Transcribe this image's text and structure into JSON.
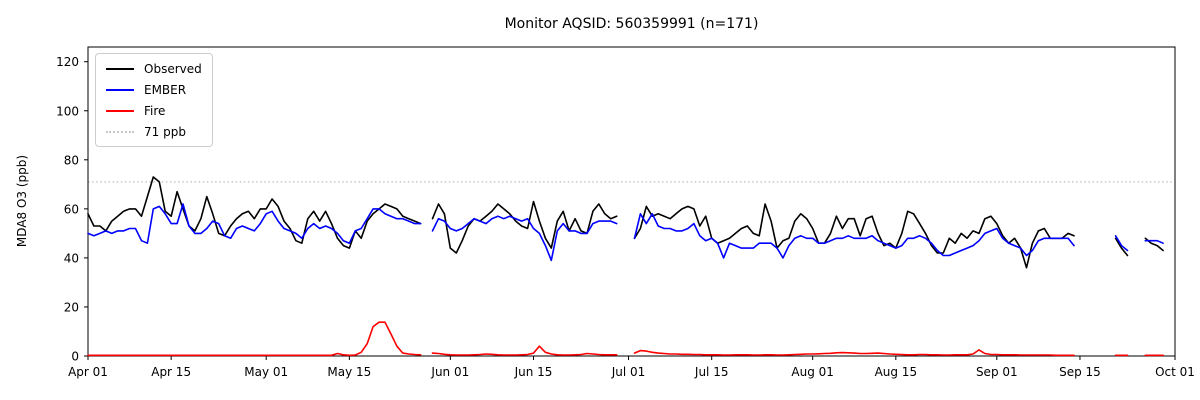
{
  "chart_data": {
    "type": "line",
    "title": "Monitor AQSID: 560359991 (n=171)",
    "xlabel": "",
    "ylabel": "MDA8 O3 (ppb)",
    "ylim": [
      0,
      126
    ],
    "yticks": [
      0,
      20,
      40,
      60,
      80,
      100,
      120
    ],
    "x_range_days": [
      0,
      183
    ],
    "x_tick_days": [
      0,
      14,
      30,
      44,
      61,
      75,
      91,
      105,
      122,
      136,
      153,
      167,
      183
    ],
    "x_tick_labels": [
      "Apr 01",
      "Apr 15",
      "May 01",
      "May 15",
      "Jun 01",
      "Jun 15",
      "Jul 01",
      "Jul 15",
      "Aug 01",
      "Aug 15",
      "Sep 01",
      "Sep 15",
      "Oct 01"
    ],
    "grid": false,
    "legend_position": "upper-left",
    "threshold": {
      "label": "71 ppb",
      "value": 71,
      "color": "#c8c8c8",
      "style": "dotted"
    },
    "axis_color": "#000000",
    "background_color": "#ffffff",
    "series": [
      {
        "name": "Observed",
        "color": "#000000",
        "values": [
          58,
          53,
          53,
          51,
          55,
          57,
          59,
          60,
          60,
          57,
          65,
          73,
          71,
          59,
          57,
          67,
          60,
          53,
          51,
          56,
          65,
          58,
          50,
          49,
          53,
          56,
          58,
          59,
          56,
          60,
          60,
          64,
          61,
          55,
          52,
          47,
          46,
          56,
          59,
          55,
          59,
          54,
          48,
          45,
          44,
          51,
          48,
          55,
          58,
          60,
          62,
          61,
          60,
          57,
          56,
          55,
          54,
          null,
          56,
          62,
          58,
          44,
          42,
          47,
          53,
          56,
          55,
          57,
          59,
          62,
          60,
          58,
          55,
          53,
          52,
          63,
          55,
          48,
          44,
          55,
          59,
          51,
          56,
          51,
          50,
          59,
          62,
          58,
          56,
          57,
          null,
          null,
          48,
          52,
          61,
          57,
          58,
          57,
          56,
          58,
          60,
          61,
          60,
          53,
          57,
          48,
          46,
          47,
          48,
          50,
          52,
          53,
          50,
          49,
          62,
          55,
          44,
          47,
          48,
          55,
          58,
          56,
          52,
          46,
          46,
          50,
          57,
          52,
          56,
          56,
          49,
          56,
          57,
          50,
          45,
          46,
          44,
          50,
          59,
          58,
          54,
          50,
          45,
          42,
          42,
          48,
          46,
          50,
          48,
          51,
          50,
          56,
          57,
          54,
          49,
          46,
          48,
          44,
          36,
          46,
          51,
          52,
          48,
          48,
          48,
          50,
          49,
          null,
          null,
          null,
          null,
          null,
          null,
          48,
          44,
          41,
          null,
          null,
          48,
          46,
          45,
          43,
          null
        ]
      },
      {
        "name": "EMBER",
        "color": "#0000ff",
        "values": [
          50,
          49,
          50,
          51,
          50,
          51,
          51,
          52,
          52,
          47,
          46,
          60,
          61,
          58,
          54,
          54,
          62,
          53,
          50,
          50,
          52,
          55,
          54,
          49,
          48,
          52,
          53,
          52,
          51,
          54,
          58,
          59,
          55,
          52,
          51,
          50,
          48,
          52,
          54,
          52,
          53,
          52,
          50,
          47,
          46,
          51,
          52,
          56,
          60,
          60,
          58,
          57,
          56,
          56,
          55,
          54,
          54,
          null,
          51,
          56,
          55,
          52,
          51,
          52,
          54,
          56,
          55,
          54,
          56,
          57,
          56,
          57,
          56,
          55,
          56,
          52,
          50,
          45,
          39,
          51,
          54,
          51,
          51,
          50,
          50,
          54,
          55,
          55,
          55,
          54,
          null,
          null,
          48,
          58,
          54,
          58,
          53,
          52,
          52,
          51,
          51,
          52,
          54,
          49,
          47,
          48,
          46,
          40,
          46,
          45,
          44,
          44,
          44,
          46,
          46,
          46,
          44,
          40,
          45,
          48,
          49,
          48,
          48,
          46,
          46,
          47,
          48,
          48,
          49,
          48,
          48,
          48,
          49,
          47,
          46,
          45,
          44,
          45,
          48,
          48,
          49,
          48,
          46,
          43,
          41,
          41,
          42,
          43,
          44,
          45,
          47,
          50,
          51,
          52,
          48,
          46,
          45,
          44,
          41,
          43,
          47,
          48,
          48,
          48,
          48,
          48,
          45,
          null,
          null,
          null,
          null,
          null,
          null,
          49,
          45,
          43,
          null,
          null,
          47,
          47,
          47,
          46,
          null
        ]
      },
      {
        "name": "Fire",
        "color": "#ff0000",
        "values": [
          0.3,
          0.3,
          0.3,
          0.3,
          0.3,
          0.3,
          0.3,
          0.3,
          0.3,
          0.3,
          0.3,
          0.3,
          0.3,
          0.3,
          0.3,
          0.3,
          0.3,
          0.3,
          0.3,
          0.3,
          0.3,
          0.3,
          0.3,
          0.3,
          0.3,
          0.3,
          0.3,
          0.3,
          0.3,
          0.3,
          0.3,
          0.3,
          0.3,
          0.3,
          0.3,
          0.3,
          0.3,
          0.3,
          0.3,
          0.3,
          0.3,
          0.3,
          1,
          0.5,
          0.3,
          0.4,
          1.5,
          5,
          12,
          13.8,
          13.8,
          9,
          4,
          1.2,
          0.8,
          0.6,
          0.5,
          null,
          1.2,
          1,
          0.7,
          0.5,
          0.4,
          0.4,
          0.4,
          0.5,
          0.6,
          0.8,
          0.7,
          0.5,
          0.4,
          0.4,
          0.4,
          0.5,
          0.6,
          1.2,
          4,
          1.5,
          0.8,
          0.5,
          0.4,
          0.4,
          0.5,
          0.6,
          1,
          0.8,
          0.6,
          0.5,
          0.5,
          0.5,
          null,
          null,
          1.2,
          2.2,
          2,
          1.5,
          1.2,
          1,
          0.8,
          0.8,
          0.7,
          0.7,
          0.6,
          0.6,
          0.5,
          0.5,
          0.5,
          0.4,
          0.4,
          0.5,
          0.5,
          0.5,
          0.4,
          0.4,
          0.5,
          0.5,
          0.4,
          0.4,
          0.5,
          0.6,
          0.7,
          0.8,
          0.8,
          0.9,
          1,
          1.1,
          1.3,
          1.4,
          1.3,
          1.2,
          1,
          1,
          1.1,
          1.2,
          1,
          0.8,
          0.7,
          0.6,
          0.5,
          0.5,
          0.6,
          0.6,
          0.5,
          0.5,
          0.4,
          0.4,
          0.5,
          0.5,
          0.5,
          0.8,
          2.5,
          1,
          0.6,
          0.6,
          0.5,
          0.5,
          0.5,
          0.4,
          0.4,
          0.4,
          0.4,
          0.4,
          0.4,
          0.3,
          0.3,
          0.3,
          0.3,
          null,
          null,
          null,
          null,
          null,
          null,
          0.3,
          0.3,
          0.3,
          null,
          null,
          0.3,
          0.3,
          0.3,
          0.3,
          null
        ]
      }
    ]
  }
}
